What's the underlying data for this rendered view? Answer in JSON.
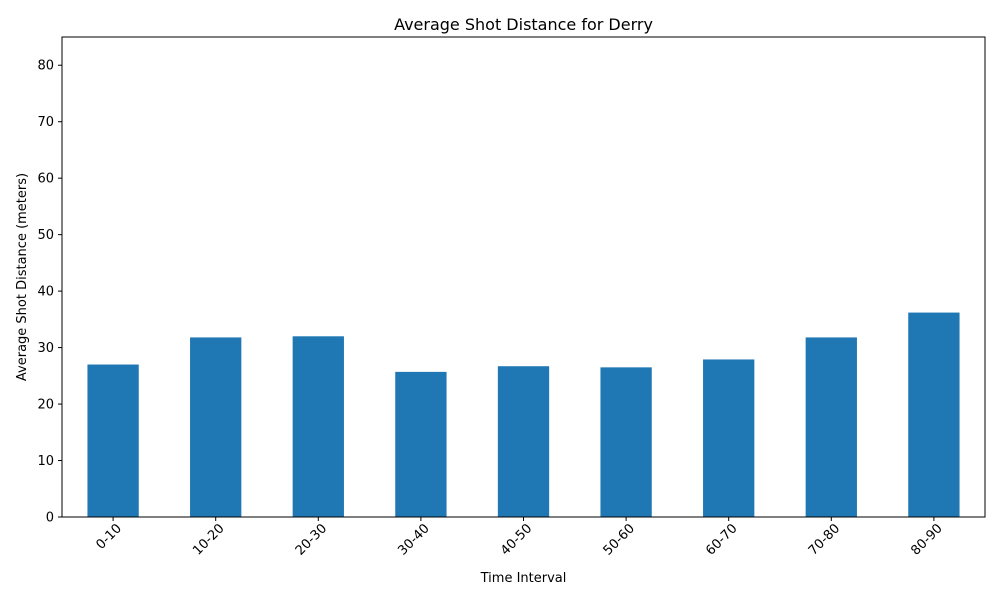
{
  "chart_data": {
    "type": "bar",
    "title": "Average Shot Distance for Derry",
    "xlabel": "Time Interval",
    "ylabel": "Average Shot Distance (meters)",
    "categories": [
      "0-10",
      "10-20",
      "20-30",
      "30-40",
      "40-50",
      "50-60",
      "60-70",
      "70-80",
      "80-90"
    ],
    "values": [
      27.0,
      31.8,
      32.0,
      25.7,
      26.7,
      26.5,
      27.9,
      31.8,
      36.2
    ],
    "ylim": [
      0,
      85
    ],
    "yticks": [
      0,
      10,
      20,
      30,
      40,
      50,
      60,
      70,
      80
    ],
    "grid": false,
    "bar_color": "#1f77b4",
    "xtick_rotation": 45
  }
}
